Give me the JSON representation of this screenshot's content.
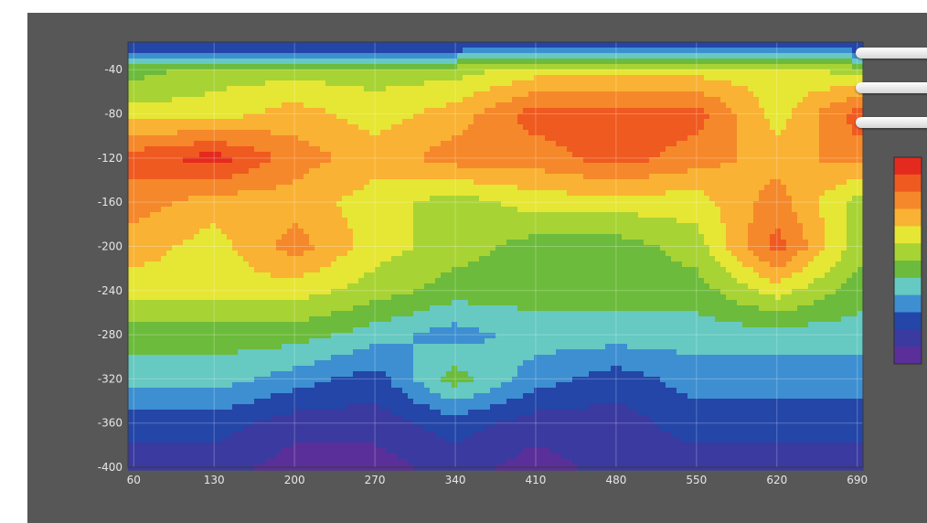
{
  "chart_data": {
    "type": "heatmap",
    "title": "",
    "xlabel": "",
    "ylabel": "",
    "x_ticks": [
      60,
      130,
      200,
      270,
      340,
      410,
      480,
      550,
      620,
      690
    ],
    "y_ticks": [
      -40,
      -80,
      -120,
      -160,
      -200,
      -240,
      -280,
      -320,
      -360,
      -400
    ],
    "xlim": [
      55,
      695
    ],
    "ylim": [
      -400,
      -15
    ],
    "grid": true,
    "legend_position": "right",
    "colorscale": [
      "#e42a1e",
      "#ef5a20",
      "#f5882a",
      "#f9b233",
      "#e6e634",
      "#a8d334",
      "#6cbb3c",
      "#66c9c2",
      "#3d8fd1",
      "#2346a8",
      "#3a3aa0",
      "#5b2f9a"
    ],
    "x": [
      60,
      130,
      200,
      270,
      340,
      410,
      480,
      550,
      620,
      690
    ],
    "y": [
      -20,
      -40,
      -80,
      -120,
      -160,
      -200,
      -240,
      -280,
      -320,
      -360,
      -400
    ],
    "z": [
      [
        9,
        9,
        9,
        9,
        9,
        9,
        9,
        9,
        9,
        9
      ],
      [
        6,
        5,
        5,
        5,
        5,
        4,
        4,
        4,
        4,
        5
      ],
      [
        4,
        4,
        3,
        4,
        3,
        1,
        1,
        1,
        4,
        1
      ],
      [
        1,
        0,
        2,
        3,
        2,
        2,
        1,
        2,
        3,
        2
      ],
      [
        2,
        3,
        3,
        4,
        5,
        4,
        4,
        4,
        2,
        5
      ],
      [
        3,
        4,
        2,
        4,
        5,
        6,
        6,
        5,
        1,
        5
      ],
      [
        4,
        4,
        4,
        5,
        6,
        6,
        6,
        6,
        4,
        6
      ],
      [
        6,
        6,
        6,
        7,
        8,
        7,
        7,
        7,
        7,
        7
      ],
      [
        7,
        7,
        8,
        9,
        6,
        8,
        9,
        8,
        8,
        8
      ],
      [
        9,
        9,
        10,
        10,
        9,
        10,
        10,
        9,
        9,
        9
      ],
      [
        10,
        10,
        11,
        11,
        10,
        11,
        10,
        10,
        10,
        10
      ]
    ]
  }
}
